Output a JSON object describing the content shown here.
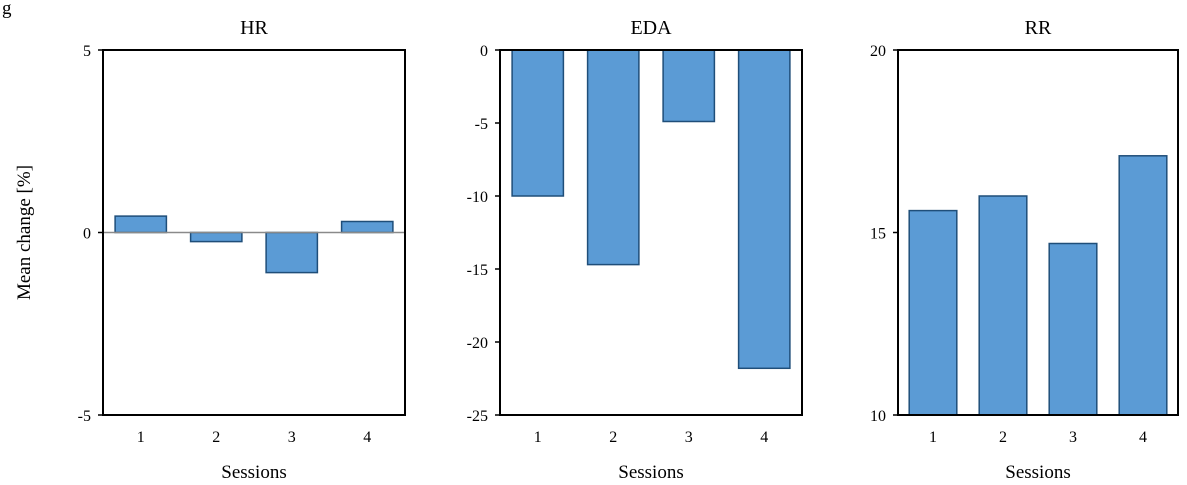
{
  "figure_prefix": "g",
  "chart_data": [
    {
      "type": "bar",
      "title": "HR",
      "xlabel": "Sessions",
      "ylabel": "Mean change [%]",
      "categories": [
        "1",
        "2",
        "3",
        "4"
      ],
      "values": [
        0.45,
        -0.25,
        -1.1,
        0.3
      ],
      "ylim": [
        -5,
        5
      ],
      "yticks": [
        "-5",
        "0",
        "5"
      ],
      "bar_color": "#5b9bd5",
      "edge_color": "#1f4e79"
    },
    {
      "type": "bar",
      "title": "EDA",
      "xlabel": "Sessions",
      "ylabel": "",
      "categories": [
        "1",
        "2",
        "3",
        "4"
      ],
      "values": [
        -10.0,
        -14.7,
        -4.9,
        -21.8
      ],
      "ylim": [
        -25,
        0
      ],
      "yticks": [
        "-25",
        "-20",
        "-15",
        "-10",
        "-5",
        "0"
      ],
      "bar_color": "#5b9bd5",
      "edge_color": "#1f4e79"
    },
    {
      "type": "bar",
      "title": "RR",
      "xlabel": "Sessions",
      "ylabel": "",
      "categories": [
        "1",
        "2",
        "3",
        "4"
      ],
      "values": [
        15.6,
        16.0,
        14.7,
        17.1
      ],
      "ylim": [
        10,
        20
      ],
      "yticks": [
        "10",
        "15",
        "20"
      ],
      "bar_color": "#5b9bd5",
      "edge_color": "#1f4e79"
    }
  ]
}
